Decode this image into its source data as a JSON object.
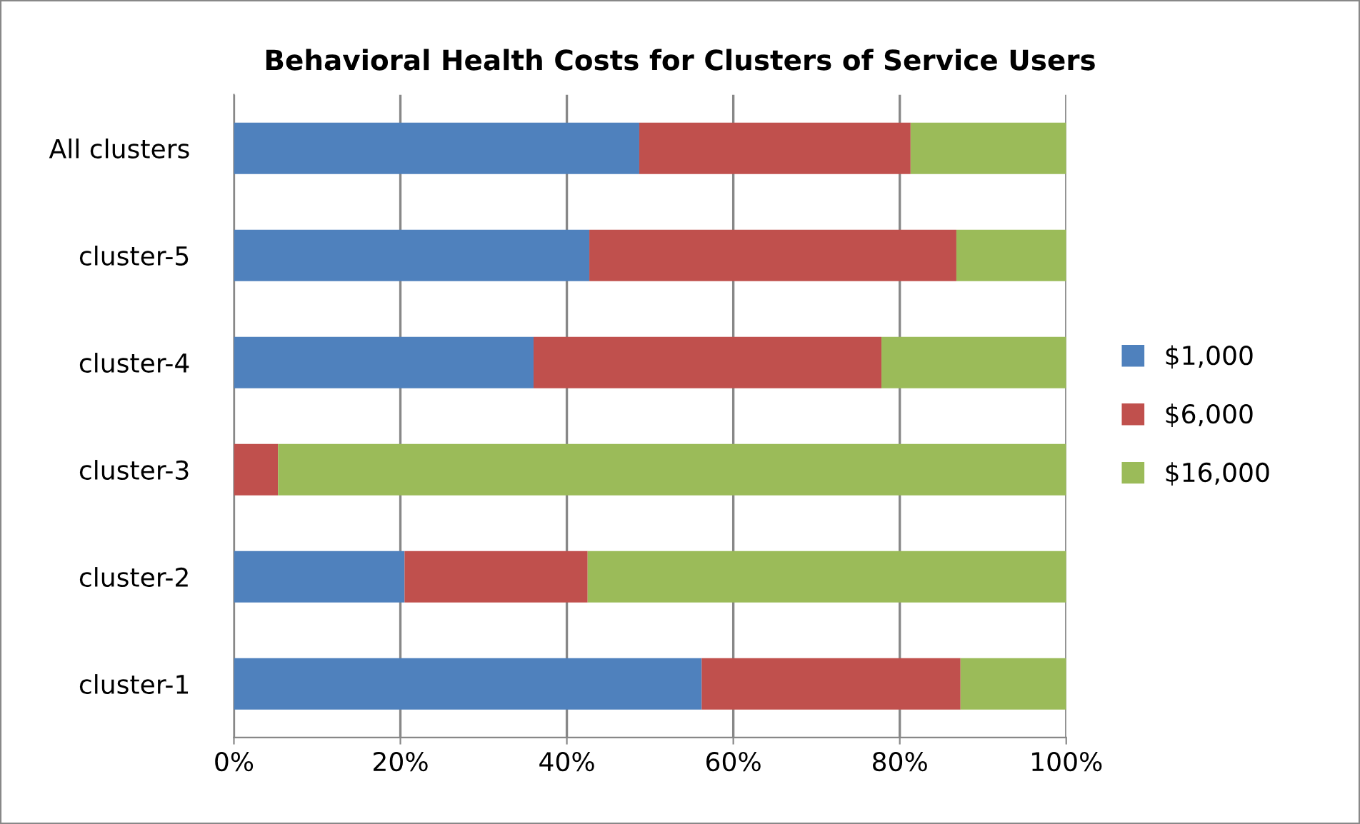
{
  "chart_data": {
    "type": "bar",
    "orientation": "horizontal",
    "stacked": true,
    "title": "Behavioral Health Costs for Clusters of Service Users",
    "categories": [
      "All clusters",
      "cluster-5",
      "cluster-4",
      "cluster-3",
      "cluster-2",
      "cluster-1"
    ],
    "series": [
      {
        "name": "$1,000",
        "color": "#4f81bd",
        "values": [
          48.7,
          42.7,
          36.0,
          0,
          20.5,
          56.2
        ]
      },
      {
        "name": "$6,000",
        "color": "#c0504d",
        "values": [
          32.6,
          44.1,
          41.8,
          5.3,
          22.0,
          31.1
        ]
      },
      {
        "name": "$16,000",
        "color": "#9bbb59",
        "values": [
          18.7,
          13.2,
          22.2,
          94.7,
          57.5,
          12.7
        ]
      }
    ],
    "xlim": [
      0,
      100
    ],
    "xticks": [
      {
        "value": 0,
        "label": "0%"
      },
      {
        "value": 20,
        "label": "20%"
      },
      {
        "value": 40,
        "label": "40%"
      },
      {
        "value": 60,
        "label": "60%"
      },
      {
        "value": 80,
        "label": "80%"
      },
      {
        "value": 100,
        "label": "100%"
      }
    ],
    "grid": "x",
    "legend": "right"
  }
}
